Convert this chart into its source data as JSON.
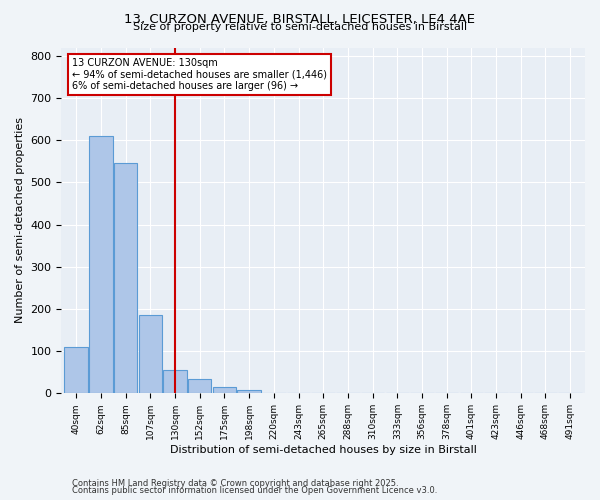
{
  "title1": "13, CURZON AVENUE, BIRSTALL, LEICESTER, LE4 4AE",
  "title2": "Size of property relative to semi-detached houses in Birstall",
  "xlabel": "Distribution of semi-detached houses by size in Birstall",
  "ylabel": "Number of semi-detached properties",
  "categories": [
    "40sqm",
    "62sqm",
    "85sqm",
    "107sqm",
    "130sqm",
    "152sqm",
    "175sqm",
    "198sqm",
    "220sqm",
    "243sqm",
    "265sqm",
    "288sqm",
    "310sqm",
    "333sqm",
    "356sqm",
    "378sqm",
    "401sqm",
    "423sqm",
    "446sqm",
    "468sqm",
    "491sqm"
  ],
  "values": [
    110,
    610,
    545,
    185,
    55,
    35,
    15,
    8,
    0,
    0,
    0,
    0,
    0,
    0,
    0,
    0,
    0,
    0,
    0,
    0,
    0
  ],
  "bar_color": "#aec6e8",
  "bar_edge_color": "#5b9bd5",
  "vline_index": 4,
  "vline_color": "#cc0000",
  "annotation_line1": "13 CURZON AVENUE: 130sqm",
  "annotation_line2": "← 94% of semi-detached houses are smaller (1,446)",
  "annotation_line3": "6% of semi-detached houses are larger (96) →",
  "annotation_box_color": "#ffffff",
  "annotation_box_edge": "#cc0000",
  "ylim": [
    0,
    820
  ],
  "yticks": [
    0,
    100,
    200,
    300,
    400,
    500,
    600,
    700,
    800
  ],
  "bg_color": "#e8eef5",
  "fig_bg_color": "#f0f4f8",
  "footer1": "Contains HM Land Registry data © Crown copyright and database right 2025.",
  "footer2": "Contains public sector information licensed under the Open Government Licence v3.0."
}
